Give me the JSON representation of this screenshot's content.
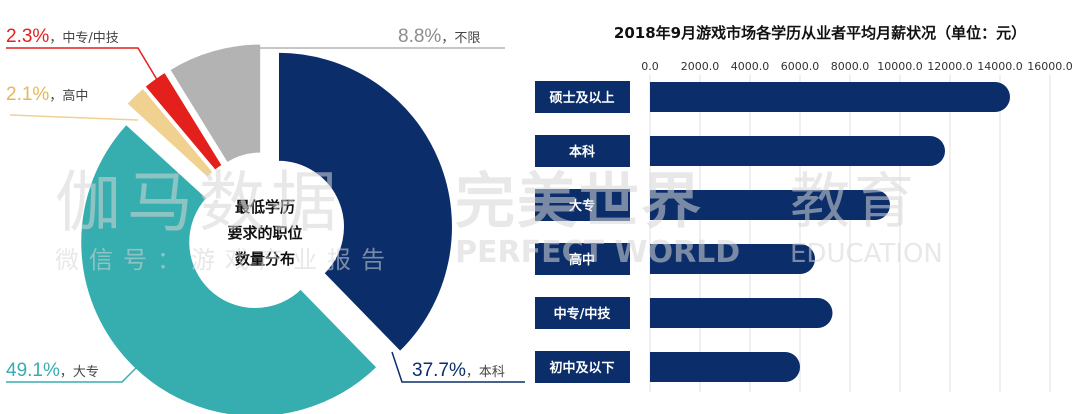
{
  "watermark": {
    "line1": "伽马数据",
    "line2": "微信号：游戏产业报告",
    "brand": "完美世界",
    "brand_en1": "PERFECT WORLD",
    "brand_cn2": "教育",
    "brand_en2": "EDUCATION"
  },
  "colors": {
    "navy": "#0b2e6b",
    "teal": "#36adae",
    "gray": "#b3b3b3",
    "red": "#e3201c",
    "tan": "#f0d18f"
  },
  "chart_data": [
    {
      "type": "pie",
      "variant": "donut",
      "title": "最低学历要求的职位数量分布",
      "title_lines": [
        "最低学历",
        "要求的职位",
        "数量分布"
      ],
      "slices": [
        {
          "name": "本科",
          "value": 37.7,
          "label": "37.7%",
          "color": "#0b2e6b"
        },
        {
          "name": "大专",
          "value": 49.1,
          "label": "49.1%",
          "color": "#36adae"
        },
        {
          "name": "高中",
          "value": 2.1,
          "label": "2.1%",
          "color": "#f0d18f"
        },
        {
          "name": "中专/中技",
          "value": 2.3,
          "label": "2.3%",
          "color": "#e3201c"
        },
        {
          "name": "不限",
          "value": 8.8,
          "label": "8.8%",
          "color": "#b3b3b3"
        }
      ],
      "separator": "，"
    },
    {
      "type": "bar",
      "orientation": "horizontal",
      "title": "2018年9月游戏市场各学历从业者平均月薪状况（单位：元）",
      "categories": [
        "硕士及以上",
        "本科",
        "大专",
        "高中",
        "中专/中技",
        "初中及以下"
      ],
      "values": [
        14400,
        11800,
        9600,
        6600,
        7300,
        6000
      ],
      "xlim": [
        0,
        16000
      ],
      "ticks": [
        "0.0",
        "2000.0",
        "4000.0",
        "6000.0",
        "8000.0",
        "10000.0",
        "12000.0",
        "14000.0",
        "16000.0"
      ],
      "tick_values": [
        0,
        2000,
        4000,
        6000,
        8000,
        10000,
        12000,
        14000,
        16000
      ],
      "grid": true,
      "bar_color": "#0b2e6b"
    }
  ]
}
